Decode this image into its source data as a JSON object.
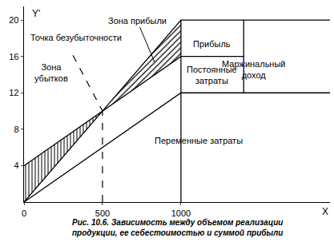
{
  "chart_data": {
    "type": "line",
    "caption": [
      "Рис. 10.6. Зависимость между объемом реализации",
      "продукции, ее себестоимостью и суммой прибыли"
    ],
    "x_label": "X",
    "y_label": "Y'",
    "xlim": [
      0,
      1950
    ],
    "ylim": [
      0,
      21.5
    ],
    "xticks": [
      0,
      500,
      1000
    ],
    "yticks": [
      4,
      8,
      12,
      16,
      20
    ],
    "grid": false,
    "color": "#000000",
    "series": [
      {
        "x": [
          0,
          1000,
          1950
        ],
        "values": [
          0,
          20,
          20
        ]
      },
      {
        "x": [
          0,
          1000,
          1400
        ],
        "values": [
          4,
          16,
          16
        ]
      },
      {
        "x": [
          0,
          1000,
          1950
        ],
        "values": [
          0,
          12,
          12
        ]
      },
      {
        "x": [
          1000,
          1000
        ],
        "values": [
          0,
          20
        ]
      },
      {
        "x": [
          1400,
          1400
        ],
        "values": [
          12,
          20
        ]
      }
    ],
    "break_even": {
      "x": 500,
      "y": 10,
      "label": "Точка безубыточности"
    },
    "zones": [
      {
        "label": [
          "Зона",
          "убытков"
        ]
      },
      {
        "label": [
          "Зона прибыли"
        ]
      }
    ],
    "region_labels": [
      [
        "Прибыль"
      ],
      [
        "Постоянные",
        "затраты"
      ],
      [
        "Маржинальный",
        "доход"
      ],
      [
        "Переменные затраты"
      ]
    ]
  }
}
